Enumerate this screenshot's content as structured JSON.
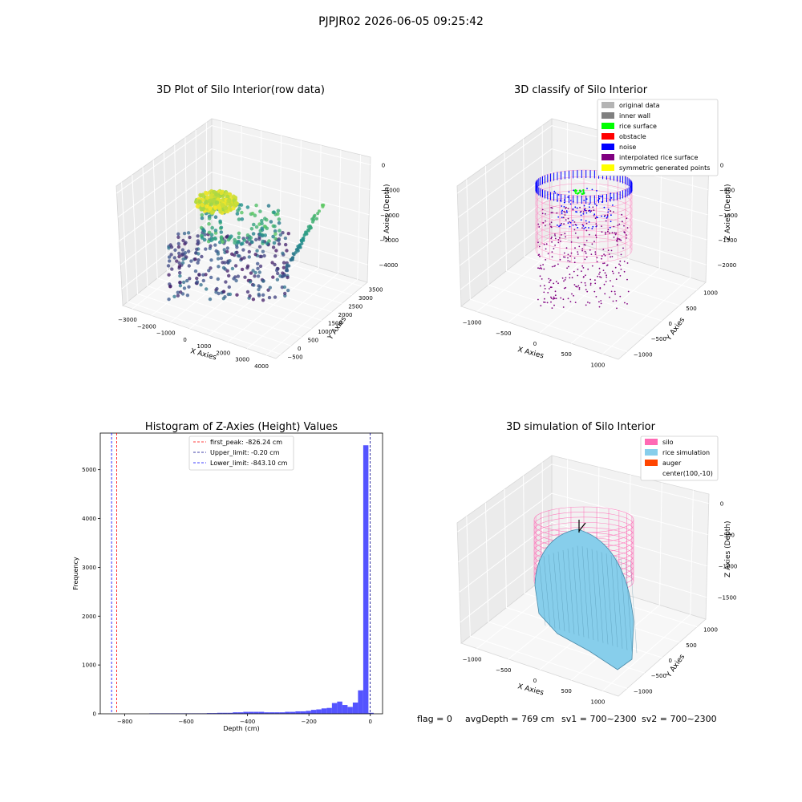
{
  "suptitle": "PJPJR02 2026-06-05 09:25:42",
  "footer": {
    "flag": "flag = 0",
    "avg_depth": "avgDepth = 769 cm",
    "sv1": "sv1 = 700~2300",
    "sv2": "sv2 = 700~2300"
  },
  "colors": {
    "noise": "#0000ff",
    "rice_surface": "#00ff00",
    "silo": "#ff69b4",
    "rice_simulation": "#87ceeb",
    "auger": "#ff4500",
    "hist_bar": "#4b4bff",
    "first_peak": "#ff0000",
    "limit": "#00008b",
    "symmetric": "#ffff00",
    "interpolated": "#800080",
    "original": "#b4b4b4",
    "inner_wall": "#808080",
    "obstacle": "#ff0000"
  },
  "chart_data": [
    {
      "type": "scatter",
      "title": "3D Plot of Silo Interior(row data)",
      "xlabel": "X Axies",
      "ylabel": "Y Axies",
      "zlabel": "Z Axies (Depth)",
      "x_ticks": [
        "−3000",
        "−2000",
        "−1000",
        "0",
        "1000",
        "2000",
        "3000",
        "4000"
      ],
      "y_ticks": [
        "−500",
        "0",
        "500",
        "1000",
        "1500",
        "2000",
        "2500",
        "3000",
        "3500"
      ],
      "z_ticks": [
        "0",
        "−1000",
        "−2000",
        "−3000",
        "−4000"
      ],
      "colormap": "viridis"
    },
    {
      "type": "scatter",
      "title": "3D classify of Silo Interior",
      "xlabel": "X Axies",
      "ylabel": "Y Axies",
      "zlabel": "Z Axies (Depth)",
      "x_ticks": [
        "−1000",
        "−500",
        "0",
        "500",
        "1000"
      ],
      "y_ticks": [
        "−1000",
        "−500",
        "0",
        "500",
        "1000"
      ],
      "z_ticks": [
        "0",
        "−500",
        "−1000",
        "−1500",
        "−2000"
      ],
      "legend": [
        {
          "label": "original data",
          "color": "#b4b4b4"
        },
        {
          "label": "inner wall",
          "color": "#808080"
        },
        {
          "label": "rice surface",
          "color": "#00ff00"
        },
        {
          "label": "obstacle",
          "color": "#ff0000"
        },
        {
          "label": "noise",
          "color": "#0000ff"
        },
        {
          "label": "interpolated rice surface",
          "color": "#800080"
        },
        {
          "label": "symmetric generated points",
          "color": "#ffff00"
        }
      ],
      "legend_position": "top-right"
    },
    {
      "type": "bar",
      "title": "Histogram of Z-Axies (Height) Values",
      "xlabel": "Depth (cm)",
      "ylabel": "Frequency",
      "xlim": [
        -880,
        40
      ],
      "ylim": [
        0,
        5750
      ],
      "x_ticks": [
        -800,
        -600,
        -400,
        -200,
        0
      ],
      "x_tick_labels": [
        "−800",
        "−600",
        "−400",
        "−200",
        "0"
      ],
      "y_ticks": [
        0,
        1000,
        2000,
        3000,
        4000,
        5000
      ],
      "bin_width": 17,
      "bins": [
        {
          "x": -720,
          "v": 10
        },
        {
          "x": -703,
          "v": 10
        },
        {
          "x": -686,
          "v": 10
        },
        {
          "x": -669,
          "v": 10
        },
        {
          "x": -652,
          "v": 10
        },
        {
          "x": -635,
          "v": 10
        },
        {
          "x": -618,
          "v": 10
        },
        {
          "x": -601,
          "v": 10
        },
        {
          "x": -584,
          "v": 10
        },
        {
          "x": -567,
          "v": 10
        },
        {
          "x": -550,
          "v": 10
        },
        {
          "x": -533,
          "v": 15
        },
        {
          "x": -516,
          "v": 15
        },
        {
          "x": -499,
          "v": 20
        },
        {
          "x": -482,
          "v": 20
        },
        {
          "x": -465,
          "v": 20
        },
        {
          "x": -448,
          "v": 30
        },
        {
          "x": -431,
          "v": 30
        },
        {
          "x": -414,
          "v": 40
        },
        {
          "x": -397,
          "v": 40
        },
        {
          "x": -380,
          "v": 40
        },
        {
          "x": -363,
          "v": 40
        },
        {
          "x": -346,
          "v": 30
        },
        {
          "x": -329,
          "v": 30
        },
        {
          "x": -312,
          "v": 30
        },
        {
          "x": -295,
          "v": 30
        },
        {
          "x": -278,
          "v": 40
        },
        {
          "x": -261,
          "v": 40
        },
        {
          "x": -244,
          "v": 50
        },
        {
          "x": -227,
          "v": 50
        },
        {
          "x": -210,
          "v": 60
        },
        {
          "x": -193,
          "v": 80
        },
        {
          "x": -176,
          "v": 90
        },
        {
          "x": -159,
          "v": 110
        },
        {
          "x": -142,
          "v": 120
        },
        {
          "x": -125,
          "v": 220
        },
        {
          "x": -108,
          "v": 250
        },
        {
          "x": -91,
          "v": 180
        },
        {
          "x": -74,
          "v": 140
        },
        {
          "x": -57,
          "v": 230
        },
        {
          "x": -40,
          "v": 480
        },
        {
          "x": -23,
          "v": 5500
        },
        {
          "x": -6,
          "v": 20
        }
      ],
      "vlines": [
        {
          "label": "first_peak: -826.24 cm",
          "x": -826.24,
          "color": "#ff0000"
        },
        {
          "label": "Upper_limit: -0.20 cm",
          "x": -0.2,
          "color": "#00008b"
        },
        {
          "label": "Lower_limit: -843.10 cm",
          "x": -843.1,
          "color": "#0000ff"
        }
      ],
      "legend_position": "top-center"
    },
    {
      "type": "area",
      "title": "3D simulation of Silo Interior",
      "xlabel": "X Axies",
      "ylabel": "Y Axies",
      "zlabel": "Z Axies (Depth)",
      "x_ticks": [
        "−1000",
        "−500",
        "0",
        "500",
        "1000"
      ],
      "y_ticks": [
        "−1000",
        "−500",
        "0",
        "500",
        "1000"
      ],
      "z_ticks": [
        "0",
        "−500",
        "−1000",
        "−1500"
      ],
      "legend": [
        {
          "label": "silo",
          "color": "#ff69b4"
        },
        {
          "label": "rice simulation",
          "color": "#87ceeb"
        },
        {
          "label": "auger",
          "color": "#ff4500"
        },
        {
          "label": "center(100,-10)",
          "color": ""
        }
      ],
      "legend_position": "top-right"
    }
  ]
}
